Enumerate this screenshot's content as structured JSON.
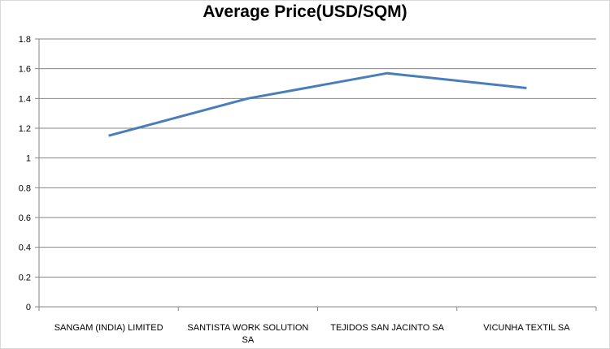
{
  "chart_data": {
    "type": "line",
    "title": "Average Price(USD/SQM)",
    "xlabel": "",
    "ylabel": "",
    "categories": [
      [
        "SANGAM (INDIA) LIMITED"
      ],
      [
        "SANTISTA  WORK SOLUTION",
        "SA"
      ],
      [
        "TEJIDOS SAN JACINTO  SA"
      ],
      [
        "VICUNHA  TEXTIL  SA"
      ]
    ],
    "series": [
      {
        "values": [
          1.15,
          1.4,
          1.57,
          1.47
        ],
        "color": "#4a7ebb"
      }
    ],
    "ylim": [
      0,
      1.8
    ],
    "yticks": [
      "0",
      "0.2",
      "0.4",
      "0.6",
      "0.8",
      "1",
      "1.2",
      "1.4",
      "1.6",
      "1.8"
    ],
    "grid": "horizontal",
    "legend": "none"
  }
}
